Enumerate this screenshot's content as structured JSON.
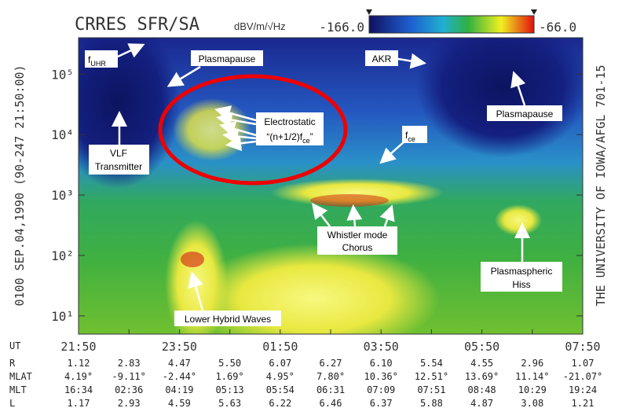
{
  "chart_data": {
    "type": "spectrogram",
    "title": "CRRES SFR/SA",
    "colorbar": {
      "label": "dBV/m/√Hz",
      "ticks": [
        {
          "value": -166,
          "label": "-166.0"
        },
        {
          "value": -66,
          "label": "-66.0"
        }
      ]
    },
    "y_label": "0100 SEP.04,1990 (90-247 21:50:00)",
    "right_label": "THE UNIVERSITY OF IOWA/AFGL 701-15",
    "x_row_label": "UT",
    "categories": [
      "21:50",
      null,
      "23:50",
      null,
      "01:50",
      null,
      "03:50",
      null,
      "05:50",
      null,
      "07:50"
    ],
    "ylim": [
      5,
      400000
    ],
    "log_y": true,
    "yticks": [
      {
        "value": 10,
        "label": "10¹"
      },
      {
        "value": 100,
        "label": "10²"
      },
      {
        "value": 1000,
        "label": "10³"
      },
      {
        "value": 10000,
        "label": "10⁴"
      },
      {
        "value": 100000,
        "label": "10⁵"
      }
    ],
    "annotations": [
      {
        "text": "f",
        "sub": "UHR"
      },
      {
        "text": "Plasmapause"
      },
      {
        "text": "AKR"
      },
      {
        "text": "Electrostatic"
      },
      {
        "text": "“(n+1/2)f",
        "sub": "ce",
        "tail": "”"
      },
      {
        "text": "f",
        "sub": "ce"
      },
      {
        "text": "Plasmapause"
      },
      {
        "text": "VLF"
      },
      {
        "text": "Transmitter"
      },
      {
        "text": "Whistler mode"
      },
      {
        "text": "Chorus"
      },
      {
        "text": "Plasmaspheric"
      },
      {
        "text": "Hiss"
      },
      {
        "text": "Lower Hybrid Waves"
      }
    ],
    "table": {
      "rows": [
        {
          "label": "R",
          "values": [
            "1.12",
            "2.83",
            "4.47",
            "5.50",
            "6.07",
            "6.27",
            "6.10",
            "5.54",
            "4.55",
            "2.96",
            "1.07"
          ]
        },
        {
          "label": "MLAT",
          "values": [
            "4.19°",
            "-9.11°",
            "-2.44°",
            "1.69°",
            "4.95°",
            "7.80°",
            "10.36°",
            "12.51°",
            "13.69°",
            "11.14°",
            "-21.07°"
          ]
        },
        {
          "label": "MLT",
          "values": [
            "16:34",
            "02:36",
            "04:19",
            "05:13",
            "05:54",
            "06:31",
            "07:09",
            "07:51",
            "08:48",
            "10:29",
            "19:24"
          ]
        },
        {
          "label": "L",
          "values": [
            "1.17",
            "2.93",
            "4.59",
            "5.63",
            "6.22",
            "6.46",
            "6.37",
            "5.88",
            "4.87",
            "3.08",
            "1.21"
          ]
        }
      ]
    }
  }
}
